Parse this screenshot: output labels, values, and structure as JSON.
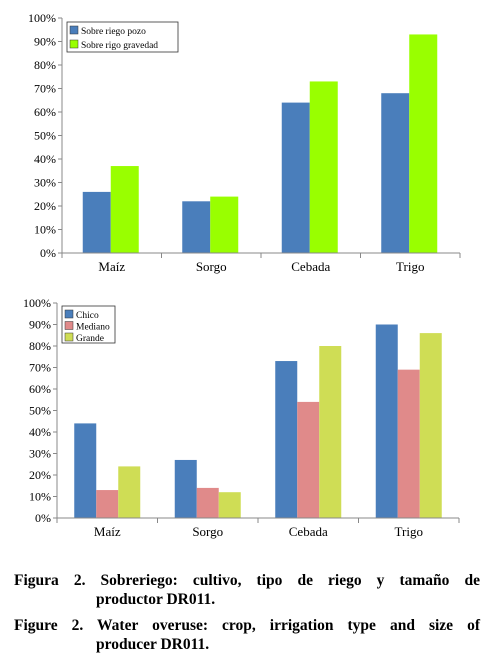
{
  "chart_data": [
    {
      "type": "bar",
      "categories": [
        "Maíz",
        "Sorgo",
        "Cebada",
        "Trigo"
      ],
      "series": [
        {
          "name": "Sobre riego pozo",
          "values": [
            26,
            22,
            64,
            68
          ],
          "color": "#4a7ebb"
        },
        {
          "name": "Sobre rigo gravedad",
          "values": [
            37,
            24,
            73,
            93
          ],
          "color": "#99ff00"
        }
      ],
      "ylim": [
        0,
        100
      ],
      "yticks": [
        "0%",
        "10%",
        "20%",
        "30%",
        "40%",
        "50%",
        "60%",
        "70%",
        "80%",
        "90%",
        "100%"
      ],
      "legend": "top-left",
      "grid": false
    },
    {
      "type": "bar",
      "categories": [
        "Maíz",
        "Sorgo",
        "Cebada",
        "Trigo"
      ],
      "series": [
        {
          "name": "Chico",
          "values": [
            44,
            27,
            73,
            90
          ],
          "color": "#4a7ebb"
        },
        {
          "name": "Mediano",
          "values": [
            13,
            14,
            54,
            69
          ],
          "color": "#e08a8a"
        },
        {
          "name": "Grande",
          "values": [
            24,
            12,
            80,
            86
          ],
          "color": "#cfdd55"
        }
      ],
      "ylim": [
        0,
        100
      ],
      "yticks": [
        "0%",
        "10%",
        "20%",
        "30%",
        "40%",
        "50%",
        "60%",
        "70%",
        "80%",
        "90%",
        "100%"
      ],
      "legend": "top-left",
      "grid": false
    }
  ],
  "caption": {
    "es_line1": "Figura 2. Sobreriego: cultivo, tipo de riego y tamaño de",
    "es_line2": "productor DR011.",
    "en_line1": "Figure 2. Water overuse: crop, irrigation type and size of",
    "en_line2": "producer DR011."
  }
}
